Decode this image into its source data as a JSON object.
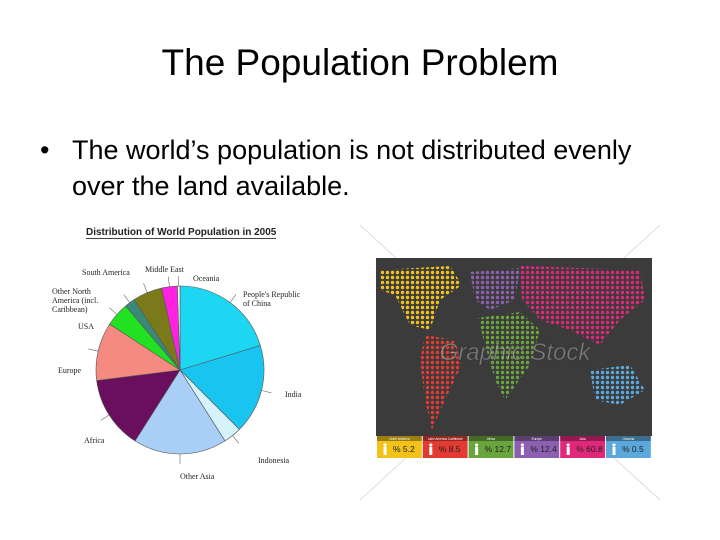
{
  "title": "The Population Problem",
  "bullets": [
    "The world’s population is not distributed evenly over the land available."
  ],
  "watermark": "Graphic Stock",
  "chart_data": [
    {
      "type": "pie",
      "title": "Distribution of World Population in 2005",
      "categories": [
        "People's Republic of China",
        "India",
        "Indonesia",
        "Other Asia",
        "Africa",
        "Europe",
        "USA",
        "Other North America (incl. Caribbean)",
        "South America",
        "Middle East",
        "Oceania"
      ],
      "values": [
        20.3,
        17.2,
        3.5,
        18,
        14,
        11.2,
        4.6,
        2,
        5.7,
        3,
        0.5
      ],
      "colors": [
        "#1cd6f2",
        "#1ac4f0",
        "#d6f3fb",
        "#a9cff7",
        "#6a0f5e",
        "#f48a80",
        "#22e022",
        "#3a8a7a",
        "#7a7a1a",
        "#ff22e0",
        "#ffffff"
      ]
    },
    {
      "type": "tiles",
      "categories": [
        "North America",
        "Latin America Caribbean",
        "Africa",
        "Europe",
        "Asia",
        "Oceania"
      ],
      "values": [
        5.2,
        8.5,
        12.7,
        12.4,
        60.8,
        0.5
      ],
      "value_labels": [
        "% 5.2",
        "% 8.5",
        "% 12.7",
        "% 12.4",
        "% 60.8",
        "% 0.5"
      ],
      "colors": [
        "#f2c21b",
        "#e23b33",
        "#6aa43c",
        "#8d5fb0",
        "#e0287b",
        "#5aa8dc"
      ]
    }
  ]
}
